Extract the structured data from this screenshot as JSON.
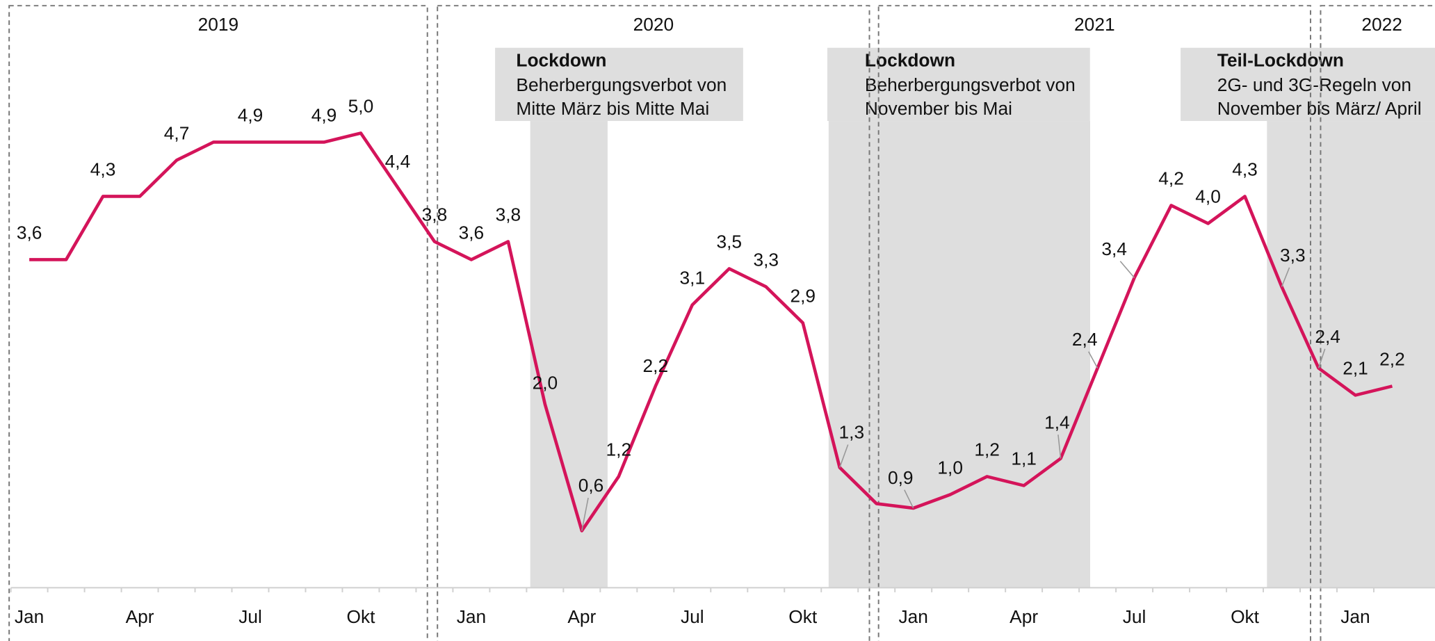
{
  "chart_data": {
    "type": "line",
    "periods": [
      "2019",
      "2020",
      "2021",
      "2022"
    ],
    "categories": [
      "Jan",
      null,
      null,
      "Apr",
      null,
      null,
      "Jul",
      null,
      null,
      "Okt",
      null,
      null,
      "Jan",
      null,
      null,
      "Apr",
      null,
      null,
      "Jul",
      null,
      null,
      "Okt",
      null,
      null,
      "Jan",
      null,
      null,
      "Apr",
      null,
      null,
      "Jul",
      null,
      null,
      "Okt",
      null,
      null,
      "Jan",
      null
    ],
    "series": [
      {
        "name": null,
        "color": "#d4145a",
        "values": [
          3.6,
          3.6,
          4.3,
          4.3,
          4.7,
          4.9,
          4.9,
          4.9,
          4.9,
          5.0,
          4.4,
          3.8,
          3.6,
          3.8,
          2.0,
          0.6,
          1.2,
          2.2,
          3.1,
          3.5,
          3.3,
          2.9,
          1.3,
          0.9,
          0.85,
          1.0,
          1.2,
          1.1,
          1.4,
          2.4,
          3.4,
          4.2,
          4.0,
          4.3,
          3.3,
          2.4,
          2.1,
          2.2
        ],
        "value_labels": [
          "3,6",
          null,
          "4,3",
          null,
          "4,7",
          null,
          "4,9",
          null,
          "4,9",
          "5,0",
          "4,4",
          "3,8",
          "3,6",
          "3,8",
          "2,0",
          "0,6",
          "1,2",
          "2,2",
          "3,1",
          "3,5",
          "3,3",
          "2,9",
          "1,3",
          null,
          "0,9",
          "1,0",
          "1,2",
          "1,1",
          "1,4",
          "2,4",
          "3,4",
          "4,2",
          "4,0",
          "4,3",
          "3,3",
          "2,4",
          "2,1",
          "2,2"
        ]
      }
    ],
    "ylim": [
      0,
      6.4
    ],
    "annotations": [
      {
        "title": "Lockdown",
        "lines": [
          "Beherbergungsverbot von",
          "Mitte März bis Mitte Mai"
        ],
        "xspan": [
          13.6,
          15.7
        ]
      },
      {
        "title": "Lockdown",
        "lines": [
          "Beherbergungsverbot von",
          "November bis Mai"
        ],
        "xspan": [
          21.7,
          28.8
        ]
      },
      {
        "title": "Teil-Lockdown",
        "lines": [
          "2G- und 3G-Regeln von",
          "November bis März/ April"
        ],
        "xspan": [
          33.6,
          38.5
        ]
      }
    ]
  }
}
